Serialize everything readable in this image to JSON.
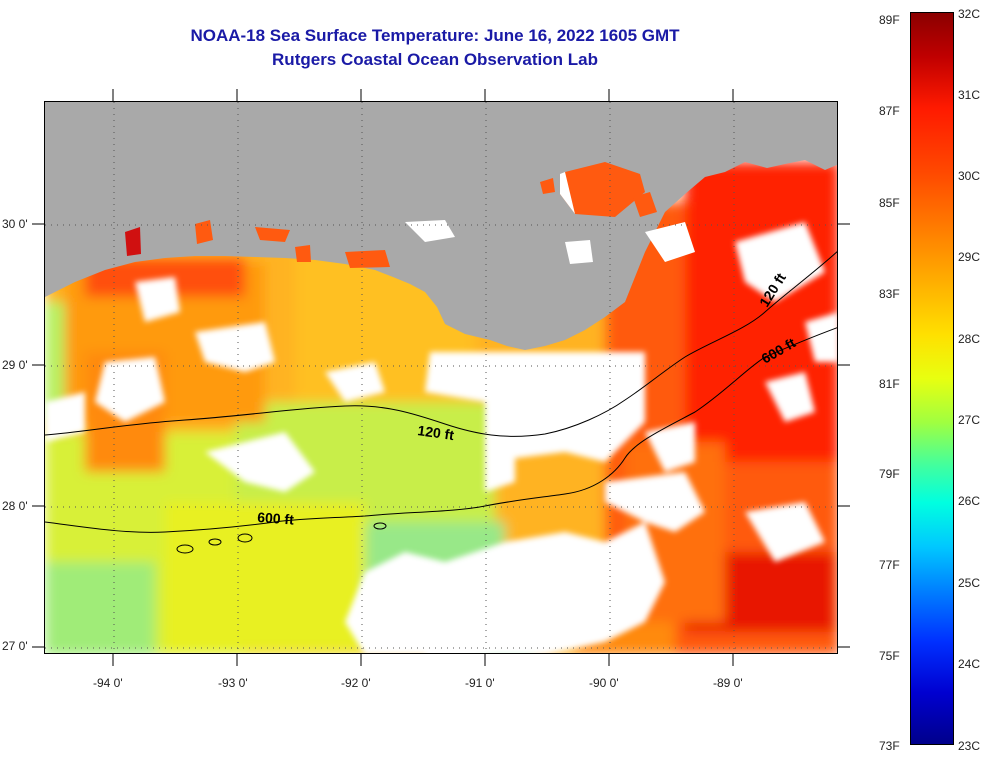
{
  "header": {
    "title": "NOAA-18 Sea Surface Temperature:  June 16, 2022 1605 GMT",
    "subtitle": "Rutgers Coastal Ocean Observation Lab"
  },
  "axes": {
    "latitude_labels": [
      "30 0'",
      "29 0'",
      "28 0'",
      "27 0'"
    ],
    "longitude_labels": [
      "-94 0'",
      "-93 0'",
      "-92 0'",
      "-91 0'",
      "-90 0'",
      "-89 0'"
    ]
  },
  "contours": {
    "c120": "120 ft",
    "c600": "600 ft"
  },
  "colorbar": {
    "fahrenheit": [
      "89F",
      "87F",
      "85F",
      "83F",
      "81F",
      "79F",
      "77F",
      "75F",
      "73F"
    ],
    "celsius": [
      "32C",
      "31C",
      "30C",
      "29C",
      "28C",
      "27C",
      "26C",
      "25C",
      "24C",
      "23C"
    ],
    "top_color": "#8b0000",
    "bottom_color": "#00008b"
  },
  "colors": {
    "land": "#a9a9a9",
    "cloud": "#ffffff",
    "title": "#1a1aa6"
  }
}
